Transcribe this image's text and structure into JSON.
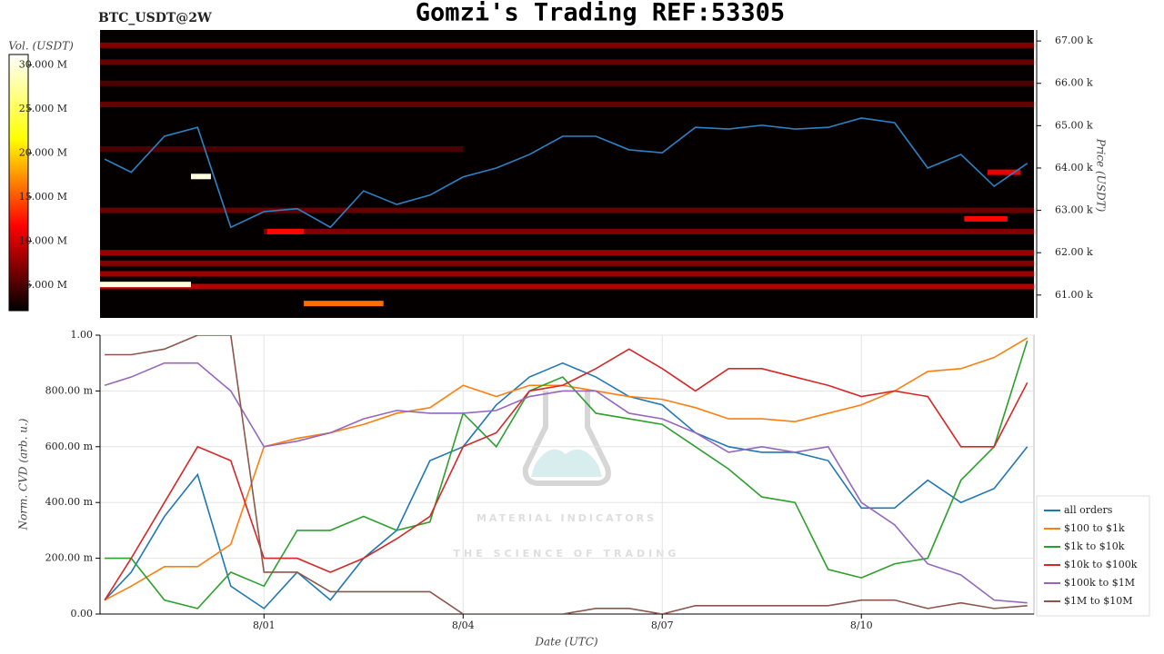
{
  "chart_data": [
    {
      "type": "heatmap",
      "title": "Gomzi's Trading REF:53305",
      "subtitle": "BTC_USDT@2W",
      "ylabel": "Price (USDT)",
      "xlim": [
        -2.47,
        11.6
      ],
      "ylim": [
        60460,
        67260
      ],
      "yticks": [
        {
          "value": 61000,
          "label": "61.00 k"
        },
        {
          "value": 62000,
          "label": "62.00 k"
        },
        {
          "value": 63000,
          "label": "63.00 k"
        },
        {
          "value": 64000,
          "label": "64.00 k"
        },
        {
          "value": 65000,
          "label": "65.00 k"
        },
        {
          "value": 66000,
          "label": "66.00 k"
        },
        {
          "value": 67000,
          "label": "67.00 k"
        }
      ],
      "colorbar": {
        "label": "Vol. (USDT)",
        "lim": [
          2.1,
          31.2
        ],
        "ticks": [
          {
            "value": 5,
            "label": "5.000 M"
          },
          {
            "value": 10,
            "label": "10.000 M"
          },
          {
            "value": 15,
            "label": "15.000 M"
          },
          {
            "value": 20,
            "label": "20.000 M"
          },
          {
            "value": 25,
            "label": "25.000 M"
          },
          {
            "value": 30,
            "label": "30.000 M"
          }
        ]
      },
      "bands": [
        {
          "price": 66900,
          "start": -2.47,
          "end": 11.6,
          "volume": 7
        },
        {
          "price": 66500,
          "start": -2.47,
          "end": 11.6,
          "volume": 6
        },
        {
          "price": 66000,
          "start": -2.47,
          "end": 11.6,
          "volume": 5
        },
        {
          "price": 65500,
          "start": -2.47,
          "end": 11.6,
          "volume": 6
        },
        {
          "price": 64450,
          "start": -2.47,
          "end": 3,
          "volume": 5
        },
        {
          "price": 63000,
          "start": -2.47,
          "end": 11.6,
          "volume": 6
        },
        {
          "price": 62500,
          "start": 0,
          "end": 11.6,
          "volume": 7
        },
        {
          "price": 62000,
          "start": -2.47,
          "end": 11.6,
          "volume": 8
        },
        {
          "price": 61750,
          "start": -2.47,
          "end": 11.6,
          "volume": 7
        },
        {
          "price": 61500,
          "start": -2.47,
          "end": 11.6,
          "volume": 8
        },
        {
          "price": 61200,
          "start": -2.47,
          "end": 11.6,
          "volume": 9
        },
        {
          "price": 60800,
          "start": 0.6,
          "end": 1.8,
          "volume": 16
        },
        {
          "price": 62500,
          "start": 0.05,
          "end": 0.6,
          "volume": 12
        },
        {
          "price": 63800,
          "start": -1.1,
          "end": -0.8,
          "volume": 30
        },
        {
          "price": 61250,
          "start": -2.47,
          "end": -1.1,
          "volume": 30
        },
        {
          "price": 62800,
          "start": 10.55,
          "end": 11.2,
          "volume": 12
        },
        {
          "price": 63900,
          "start": 10.9,
          "end": 11.4,
          "volume": 11
        }
      ],
      "x": [
        -2.4,
        -2.0,
        -1.5,
        -1.0,
        -0.5,
        0,
        0.5,
        1,
        1.5,
        2,
        2.5,
        3,
        3.5,
        4,
        4.5,
        5,
        5.5,
        6,
        6.5,
        7,
        7.5,
        8,
        8.5,
        9,
        9.5,
        10,
        10.5,
        11,
        11.5
      ],
      "series": [
        {
          "color": "#2b83c6",
          "values": [
            64210,
            63900,
            64750,
            64960,
            62600,
            62970,
            63040,
            62600,
            63460,
            63140,
            63360,
            63790,
            64000,
            64320,
            64750,
            64750,
            64430,
            64360,
            64960,
            64920,
            65010,
            64920,
            64960,
            65180,
            65070,
            64000,
            64320,
            63570,
            64110
          ]
        }
      ]
    },
    {
      "type": "line",
      "xlabel": "Date (UTC)",
      "ylabel": "Norm. CVD (arb. u.)",
      "watermark": [
        "MATERIAL INDICATORS",
        "THE SCIENCE OF TRADING"
      ],
      "xlim": [
        -2.47,
        11.6
      ],
      "ylim": [
        0,
        1
      ],
      "grid": true,
      "legend": "lower right",
      "xticks": [
        {
          "value": 0,
          "label": "8/01"
        },
        {
          "value": 3,
          "label": "8/04"
        },
        {
          "value": 6,
          "label": "8/07"
        },
        {
          "value": 9,
          "label": "8/10"
        }
      ],
      "yticks": [
        {
          "value": 0,
          "label": "0.00"
        },
        {
          "value": 0.2,
          "label": "200.00 m"
        },
        {
          "value": 0.4,
          "label": "400.00 m"
        },
        {
          "value": 0.6,
          "label": "600.00 m"
        },
        {
          "value": 0.8,
          "label": "800.00 m"
        },
        {
          "value": 1,
          "label": "1.00"
        }
      ],
      "x": [
        -2.4,
        -2.0,
        -1.5,
        -1.0,
        -0.5,
        0,
        0.5,
        1,
        1.5,
        2,
        2.5,
        3,
        3.5,
        4,
        4.5,
        5,
        5.5,
        6,
        6.5,
        7,
        7.5,
        8,
        8.5,
        9,
        9.5,
        10,
        10.5,
        11,
        11.5
      ],
      "series": [
        {
          "name": "all orders",
          "color": "#1f77b4",
          "values": [
            0.05,
            0.15,
            0.35,
            0.5,
            0.1,
            0.02,
            0.15,
            0.05,
            0.2,
            0.3,
            0.55,
            0.6,
            0.75,
            0.85,
            0.9,
            0.85,
            0.78,
            0.75,
            0.65,
            0.6,
            0.58,
            0.58,
            0.55,
            0.38,
            0.38,
            0.48,
            0.4,
            0.45,
            0.6
          ]
        },
        {
          "name": "$100 to $1k",
          "color": "#ff7f0e",
          "values": [
            0.05,
            0.1,
            0.17,
            0.17,
            0.25,
            0.6,
            0.63,
            0.65,
            0.68,
            0.72,
            0.74,
            0.82,
            0.78,
            0.82,
            0.82,
            0.8,
            0.78,
            0.77,
            0.74,
            0.7,
            0.7,
            0.69,
            0.72,
            0.75,
            0.8,
            0.87,
            0.88,
            0.92,
            0.99
          ]
        },
        {
          "name": "$1k to $10k",
          "color": "#2ca02c",
          "values": [
            0.2,
            0.2,
            0.05,
            0.02,
            0.15,
            0.1,
            0.3,
            0.3,
            0.35,
            0.3,
            0.33,
            0.72,
            0.6,
            0.8,
            0.85,
            0.72,
            0.7,
            0.68,
            0.6,
            0.52,
            0.42,
            0.4,
            0.16,
            0.13,
            0.18,
            0.2,
            0.48,
            0.6,
            0.98
          ]
        },
        {
          "name": "$10k to $100k",
          "color": "#d62728",
          "values": [
            0.05,
            0.2,
            0.4,
            0.6,
            0.55,
            0.2,
            0.2,
            0.15,
            0.2,
            0.27,
            0.35,
            0.6,
            0.65,
            0.8,
            0.82,
            0.88,
            0.95,
            0.88,
            0.8,
            0.88,
            0.88,
            0.85,
            0.82,
            0.78,
            0.8,
            0.78,
            0.6,
            0.6,
            0.83
          ]
        },
        {
          "name": "$100k to $1M",
          "color": "#9467bd",
          "values": [
            0.82,
            0.85,
            0.9,
            0.9,
            0.8,
            0.6,
            0.62,
            0.65,
            0.7,
            0.73,
            0.72,
            0.72,
            0.73,
            0.78,
            0.8,
            0.8,
            0.72,
            0.7,
            0.65,
            0.58,
            0.6,
            0.58,
            0.6,
            0.4,
            0.32,
            0.18,
            0.14,
            0.05,
            0.04
          ]
        },
        {
          "name": "$1M to $10M",
          "color": "#8c564b",
          "values": [
            0.93,
            0.93,
            0.95,
            1.0,
            1.0,
            0.15,
            0.15,
            0.08,
            0.08,
            0.08,
            0.08,
            0,
            0,
            0,
            0,
            0.02,
            0.02,
            0,
            0.03,
            0.03,
            0.03,
            0.03,
            0.03,
            0.05,
            0.05,
            0.02,
            0.04,
            0.02,
            0.03
          ]
        }
      ]
    }
  ]
}
